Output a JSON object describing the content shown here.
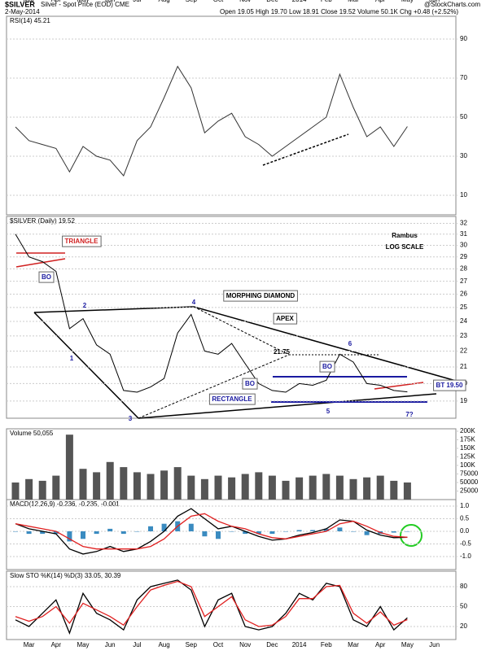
{
  "header": {
    "symbol": "$SILVER",
    "title": "Silver - Spot Price (EOD) CME",
    "date": "2-May-2014",
    "quote": "Open 19.05  High 19.70  Low 18.91  Close 19.52  Volume 50.1K  Chg +0.48 (+2.52%)",
    "source": "@StockCharts.com"
  },
  "chart_data": [
    {
      "type": "line",
      "title": "RSI(14) 45.21",
      "color": "#333333",
      "ylim": [
        0,
        100
      ],
      "yticks": [
        10,
        30,
        50,
        70,
        90
      ],
      "grid": true,
      "values": [
        45,
        38,
        36,
        34,
        22,
        35,
        30,
        28,
        20,
        38,
        45,
        60,
        76,
        65,
        42,
        48,
        52,
        40,
        36,
        30,
        35,
        40,
        45,
        50,
        72,
        55,
        40,
        45,
        35,
        45.21,
        null,
        null,
        null
      ]
    },
    {
      "type": "line",
      "title": "$SILVER (Daily) 19.52",
      "color": "#000000",
      "log_scale": true,
      "ylim": [
        17.6,
        32.5
      ],
      "yticks": [
        19,
        20,
        21,
        22,
        23,
        24,
        25,
        26,
        27,
        28,
        29,
        30,
        31,
        32
      ],
      "grid": true,
      "categories": [
        null,
        "Mar",
        null,
        "Apr",
        null,
        "May",
        null,
        "Jun",
        null,
        "Jul",
        null,
        "Aug",
        null,
        "Sep",
        null,
        "Oct",
        null,
        "Nov",
        null,
        "Dec",
        null,
        "2014",
        null,
        "Feb",
        null,
        "Mar",
        null,
        "Apr",
        null,
        "May",
        null,
        "Jun",
        null
      ],
      "values": [
        31.0,
        29.0,
        28.6,
        27.8,
        23.5,
        24.2,
        22.4,
        21.8,
        19.6,
        19.5,
        19.8,
        20.3,
        23.2,
        24.5,
        22.0,
        21.8,
        22.5,
        21.2,
        20.0,
        19.6,
        19.5,
        20.0,
        19.9,
        20.2,
        21.8,
        21.3,
        20.0,
        19.9,
        19.6,
        19.52,
        null,
        null,
        null
      ],
      "annotations": [
        "TRIANGLE",
        "BO",
        "BO",
        "BO",
        "MORPHING DIAMOND",
        "APEX",
        "21.75",
        "RECTANGLE",
        "BT 19.50",
        "Rambus",
        "LOG SCALE",
        "1",
        "2",
        "3",
        "4",
        "5",
        "6",
        "7?"
      ]
    },
    {
      "type": "bar",
      "title": "Volume 50,055",
      "color": "#555555",
      "ylim": [
        0,
        200000
      ],
      "yticks": [
        25000,
        {
          "value": 50000,
          "label": "50000"
        },
        {
          "value": 75000,
          "label": "75000"
        },
        {
          "value": 100000,
          "label": "100K"
        },
        {
          "value": 125000,
          "label": "125K"
        },
        {
          "value": 150000,
          "label": "150K"
        },
        {
          "value": 175000,
          "label": "175K"
        },
        {
          "value": 200000,
          "label": "200K"
        }
      ],
      "values": [
        50000,
        60000,
        55000,
        70000,
        190000,
        90000,
        80000,
        110000,
        95000,
        80000,
        75000,
        85000,
        95000,
        70000,
        60000,
        70000,
        65000,
        75000,
        80000,
        70000,
        55000,
        65000,
        70000,
        75000,
        70000,
        60000,
        65000,
        70000,
        55000,
        50055,
        null,
        null,
        null
      ]
    },
    {
      "type": "line",
      "title": "MACD(12,26,9) -0.236, -0.235, -0.001",
      "ylim": [
        -1.5,
        1.25
      ],
      "grid": true,
      "yticks": [
        {
          "value": -1,
          "label": "-1.0"
        },
        {
          "value": -0.5,
          "label": "-0.5"
        },
        {
          "value": 0,
          "label": "0.0"
        },
        {
          "value": 0.5,
          "label": "0.5"
        },
        {
          "value": 1,
          "label": "1.0"
        }
      ],
      "series": [
        {
          "color": "#3a8bc0",
          "style": "bar",
          "values": [
            0,
            -0.1,
            -0.1,
            -0.1,
            -0.4,
            -0.3,
            -0.1,
            0.1,
            -0.1,
            0,
            0.2,
            0.3,
            0.4,
            0.3,
            -0.2,
            -0.3,
            0,
            -0.1,
            -0.1,
            -0.1,
            0,
            0.05,
            0.05,
            0.1,
            0.15,
            0,
            -0.15,
            -0.1,
            -0.05,
            -0.001,
            null,
            null,
            null
          ]
        },
        {
          "color": "#000000",
          "values": [
            0.3,
            0.1,
            0,
            -0.1,
            -0.7,
            -0.9,
            -0.8,
            -0.6,
            -0.8,
            -0.7,
            -0.4,
            0,
            0.6,
            0.9,
            0.5,
            0.1,
            0.2,
            0,
            -0.2,
            -0.35,
            -0.3,
            -0.15,
            -0.05,
            0.1,
            0.45,
            0.4,
            0.05,
            -0.15,
            -0.25,
            -0.236,
            null,
            null,
            null
          ]
        },
        {
          "color": "#e02020",
          "values": [
            0.3,
            0.2,
            0.1,
            0,
            -0.3,
            -0.6,
            -0.7,
            -0.7,
            -0.7,
            -0.7,
            -0.6,
            -0.3,
            0.2,
            0.6,
            0.7,
            0.4,
            0.2,
            0.1,
            -0.1,
            -0.25,
            -0.3,
            -0.2,
            -0.1,
            0,
            0.3,
            0.4,
            0.2,
            -0.05,
            -0.2,
            -0.235,
            null,
            null,
            null
          ]
        }
      ]
    },
    {
      "type": "line",
      "title": "Slow STO %K(14) %D(3) 33.05, 30.39",
      "ylim": [
        0,
        100
      ],
      "yticks": [
        20,
        50,
        80
      ],
      "grid": true,
      "categories": [
        null,
        "Mar",
        null,
        "Apr",
        null,
        "May",
        null,
        "Jun",
        null,
        "Jul",
        null,
        "Aug",
        null,
        "Sep",
        null,
        "Oct",
        null,
        "Nov",
        null,
        "Dec",
        null,
        "2014",
        null,
        "Feb",
        null,
        "Mar",
        null,
        "Apr",
        null,
        "May",
        null,
        "Jun",
        null
      ],
      "series": [
        {
          "color": "#000000",
          "values": [
            30,
            20,
            40,
            60,
            10,
            70,
            40,
            30,
            15,
            60,
            80,
            85,
            90,
            75,
            20,
            60,
            70,
            20,
            15,
            20,
            40,
            70,
            60,
            85,
            80,
            30,
            20,
            50,
            15,
            33.05,
            null,
            null,
            null
          ]
        },
        {
          "color": "#e02020",
          "values": [
            35,
            28,
            35,
            50,
            25,
            55,
            45,
            35,
            22,
            50,
            75,
            82,
            88,
            80,
            35,
            50,
            65,
            30,
            20,
            22,
            35,
            62,
            62,
            80,
            82,
            40,
            25,
            42,
            22,
            30.39,
            null,
            null,
            null
          ]
        }
      ]
    }
  ]
}
